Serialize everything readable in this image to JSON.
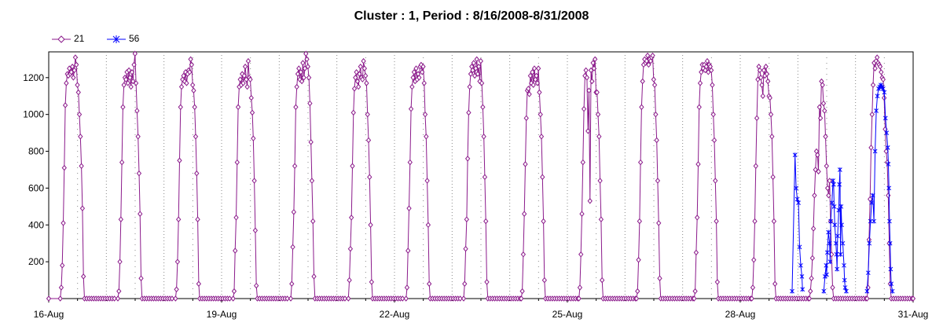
{
  "chart_data": {
    "type": "line",
    "title": "Cluster : 1, Period : 8/16/2008-8/31/2008",
    "xlabel": "",
    "ylabel": "",
    "x_tick_labels": [
      "16-Aug",
      "19-Aug",
      "22-Aug",
      "25-Aug",
      "28-Aug",
      "31-Aug"
    ],
    "x_tick_days": [
      0,
      3,
      6,
      9,
      12,
      15
    ],
    "xlim_days": [
      0,
      15
    ],
    "ylim": [
      0,
      1340
    ],
    "y_ticks": [
      200,
      400,
      600,
      800,
      1000,
      1200
    ],
    "grid": true,
    "legend": "top-left",
    "series": [
      {
        "name": "21",
        "color": "#8B1A8B",
        "marker": "diamond",
        "days": [
          {
            "start": 0.2,
            "end": 0.62,
            "peak": 1220,
            "rise": [
              0,
              60,
              180,
              410,
              710,
              1050,
              1170,
              1220
            ],
            "plateau": [
              1210,
              1250,
              1220,
              1230,
              1260,
              1200,
              1240,
              1310,
              1270,
              1160
            ],
            "fall": [
              1120,
              1000,
              880,
              720,
              490,
              120,
              0
            ]
          },
          {
            "start": 1.2,
            "end": 1.62,
            "peak": 1220,
            "rise": [
              0,
              40,
              200,
              430,
              740,
              1040,
              1160,
              1200
            ],
            "plateau": [
              1190,
              1230,
              1170,
              1240,
              1200,
              1150,
              1230,
              1180,
              1270,
              1330
            ],
            "fall": [
              1170,
              1020,
              880,
              680,
              460,
              110,
              0
            ]
          },
          {
            "start": 2.2,
            "end": 2.62,
            "peak": 1220,
            "rise": [
              0,
              50,
              200,
              430,
              750,
              1040,
              1150,
              1190
            ],
            "plateau": [
              1210,
              1180,
              1230,
              1170,
              1220,
              1240,
              1230,
              1300,
              1270,
              1160
            ],
            "fall": [
              1130,
              1040,
              880,
              680,
              430,
              80,
              0
            ]
          },
          {
            "start": 3.2,
            "end": 3.62,
            "peak": 1220,
            "rise": [
              0,
              40,
              260,
              440,
              740,
              1040,
              1150,
              1190
            ],
            "plateau": [
              1160,
              1220,
              1170,
              1210,
              1260,
              1190,
              1150,
              1290,
              1200,
              1190
            ],
            "fall": [
              1090,
              1010,
              870,
              640,
              370,
              70,
              0
            ]
          },
          {
            "start": 4.2,
            "end": 4.62,
            "peak": 1240,
            "rise": [
              0,
              80,
              280,
              470,
              720,
              1040,
              1150,
              1220
            ],
            "plateau": [
              1250,
              1190,
              1230,
              1180,
              1280,
              1200,
              1250,
              1330,
              1300,
              1260
            ],
            "fall": [
              1200,
              1060,
              850,
              640,
              420,
              120,
              0
            ]
          },
          {
            "start": 5.2,
            "end": 5.62,
            "peak": 1220,
            "rise": [
              0,
              100,
              270,
              440,
              720,
              1010,
              1140,
              1200
            ],
            "plateau": [
              1230,
              1180,
              1150,
              1220,
              1260,
              1200,
              1190,
              1290,
              1250,
              1210
            ],
            "fall": [
              1170,
              1000,
              860,
              660,
              400,
              90,
              0
            ]
          },
          {
            "start": 6.2,
            "end": 6.62,
            "peak": 1220,
            "rise": [
              0,
              60,
              260,
              490,
              740,
              1030,
              1150,
              1200
            ],
            "plateau": [
              1230,
              1180,
              1250,
              1190,
              1220,
              1200,
              1260,
              1270,
              1230,
              1260
            ],
            "fall": [
              1170,
              1000,
              880,
              640,
              400,
              80,
              0
            ]
          },
          {
            "start": 7.2,
            "end": 7.62,
            "peak": 1250,
            "rise": [
              0,
              80,
              270,
              430,
              760,
              1010,
              1150,
              1220
            ],
            "plateau": [
              1260,
              1240,
              1280,
              1210,
              1250,
              1300,
              1220,
              1260,
              1180,
              1290
            ],
            "fall": [
              1170,
              1040,
              880,
              660,
              420,
              90,
              0
            ]
          },
          {
            "start": 8.2,
            "end": 8.62,
            "peak": 1220,
            "rise": [
              0,
              40,
              240,
              460,
              730,
              980,
              1130,
              1140
            ],
            "plateau": [
              1110,
              1210,
              1170,
              1230,
              1160,
              1250,
              1190,
              1210,
              1170,
              1250
            ],
            "fall": [
              1120,
              1000,
              880,
              660,
              420,
              100,
              0
            ]
          },
          {
            "start": 9.2,
            "end": 9.62,
            "peak": 1240,
            "rise": [
              0,
              60,
              240,
              460,
              740,
              1030,
              1210,
              1240
            ],
            "plateau": [
              1200,
              910,
              1130,
              530,
              1240,
              1180,
              1280,
              1250,
              1300,
              1120
            ],
            "fall": [
              1120,
              1000,
              880,
              640,
              430,
              100,
              0
            ]
          },
          {
            "start": 10.2,
            "end": 10.62,
            "peak": 1290,
            "rise": [
              0,
              40,
              210,
              420,
              740,
              1040,
              1180,
              1270
            ],
            "plateau": [
              1300,
              1280,
              1290,
              1320,
              1270,
              1300,
              1290,
              1310,
              1320,
              1190
            ],
            "fall": [
              1160,
              1000,
              860,
              640,
              410,
              110,
              0
            ]
          },
          {
            "start": 11.2,
            "end": 11.62,
            "peak": 1260,
            "rise": [
              0,
              40,
              250,
              440,
              730,
              1040,
              1170,
              1230
            ],
            "plateau": [
              1270,
              1250,
              1270,
              1240,
              1260,
              1290,
              1230,
              1270,
              1260,
              1240
            ],
            "fall": [
              1160,
              1000,
              860,
              640,
              420,
              90,
              0
            ]
          },
          {
            "start": 12.2,
            "end": 12.62,
            "peak": 1230,
            "rise": [
              0,
              60,
              210,
              420,
              720,
              980,
              1190,
              1260
            ],
            "plateau": [
              1240,
              1200,
              1160,
              1100,
              1240,
              1210,
              1260,
              1220,
              1180,
              1100
            ],
            "fall": [
              1090,
              1000,
              880,
              660,
              420,
              80,
              0
            ]
          },
          {
            "start": 13.2,
            "end": 13.62,
            "peak": 1160,
            "rise": [
              0,
              40,
              110,
              220,
              380,
              560,
              700,
              800
            ],
            "plateau": [
              780,
              690,
              1040,
              980,
              1180,
              1160,
              1060,
              1020,
              880,
              720
            ],
            "fall": [
              600,
              560,
              640,
              420,
              240,
              60,
              0
            ]
          },
          {
            "start": 14.2,
            "end": 14.62,
            "peak": 1280,
            "rise": [
              0,
              60,
              320,
              540,
              820,
              1000,
              1160,
              1280
            ],
            "plateau": [
              1250,
              1290,
              1310,
              1280,
              1270,
              1260,
              1230,
              1200,
              1190,
              1090
            ],
            "fall": [
              920,
              800,
              740,
              560,
              300,
              80,
              0
            ]
          }
        ]
      },
      {
        "name": "56",
        "color": "#0000FF",
        "marker": "asterisk",
        "points": [
          [
            12.95,
            780
          ],
          [
            12.97,
            600
          ],
          [
            12.99,
            540
          ],
          [
            13.01,
            520
          ],
          [
            13.03,
            280
          ],
          [
            13.05,
            180
          ],
          [
            13.07,
            120
          ],
          [
            13.08,
            50
          ],
          [
            12.9,
            40
          ],
          [
            13.45,
            40
          ],
          [
            13.47,
            120
          ],
          [
            13.49,
            180
          ],
          [
            13.51,
            250
          ],
          [
            13.53,
            360
          ],
          [
            13.55,
            300
          ],
          [
            13.57,
            420
          ],
          [
            13.59,
            520
          ],
          [
            13.61,
            640
          ],
          [
            13.62,
            620
          ],
          [
            13.63,
            500
          ],
          [
            13.64,
            400
          ],
          [
            13.66,
            300
          ],
          [
            13.67,
            240
          ],
          [
            13.68,
            160
          ],
          [
            13.69,
            340
          ],
          [
            13.71,
            480
          ],
          [
            13.72,
            620
          ],
          [
            13.73,
            700
          ],
          [
            13.75,
            500
          ],
          [
            13.76,
            400
          ],
          [
            13.78,
            300
          ],
          [
            13.8,
            180
          ],
          [
            13.81,
            100
          ],
          [
            13.82,
            60
          ],
          [
            13.84,
            40
          ],
          [
            13.5,
            130
          ],
          [
            13.56,
            200
          ],
          [
            13.74,
            240
          ],
          [
            14.2,
            40
          ],
          [
            14.22,
            140
          ],
          [
            14.24,
            300
          ],
          [
            14.26,
            420
          ],
          [
            14.28,
            520
          ],
          [
            14.3,
            560
          ],
          [
            14.32,
            420
          ],
          [
            14.34,
            800
          ],
          [
            14.36,
            1020
          ],
          [
            14.38,
            1100
          ],
          [
            14.4,
            1140
          ],
          [
            14.42,
            1150
          ],
          [
            14.44,
            1160
          ],
          [
            14.46,
            1150
          ],
          [
            14.48,
            1140
          ],
          [
            14.5,
            1120
          ],
          [
            14.52,
            980
          ],
          [
            14.54,
            900
          ],
          [
            14.56,
            820
          ],
          [
            14.57,
            730
          ],
          [
            14.58,
            600
          ],
          [
            14.59,
            420
          ],
          [
            14.6,
            300
          ],
          [
            14.61,
            160
          ],
          [
            14.62,
            80
          ],
          [
            14.64,
            40
          ]
        ]
      }
    ]
  }
}
